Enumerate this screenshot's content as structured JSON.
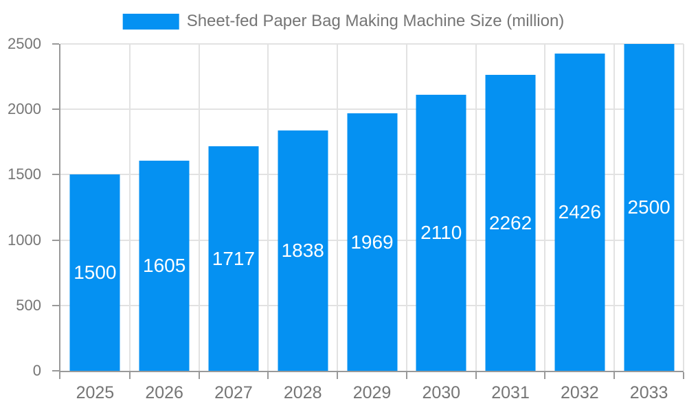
{
  "chart_data": {
    "type": "bar",
    "title": "Sheet-fed Paper Bag Making Machine Size (million)",
    "legend": [
      "Sheet-fed Paper Bag Making Machine Size (million)"
    ],
    "legend_position": "top-center",
    "categories": [
      "2025",
      "2026",
      "2027",
      "2028",
      "2029",
      "2030",
      "2031",
      "2032",
      "2033"
    ],
    "values": [
      1500,
      1605,
      1717,
      1838,
      1969,
      2110,
      2262,
      2426,
      2500
    ],
    "xlabel": "",
    "ylabel": "",
    "ylim": [
      0,
      2500
    ],
    "yticks": [
      0,
      500,
      1000,
      1500,
      2000,
      2500
    ],
    "grid": "on",
    "value_labels": "inside-center"
  },
  "colors": {
    "bar": "#0591f2",
    "bar_label": "#ffffff",
    "grid": "#e2e2e2",
    "axis": "#999999",
    "tick_text": "#757575",
    "legend_text": "#757575",
    "background": "#ffffff"
  }
}
